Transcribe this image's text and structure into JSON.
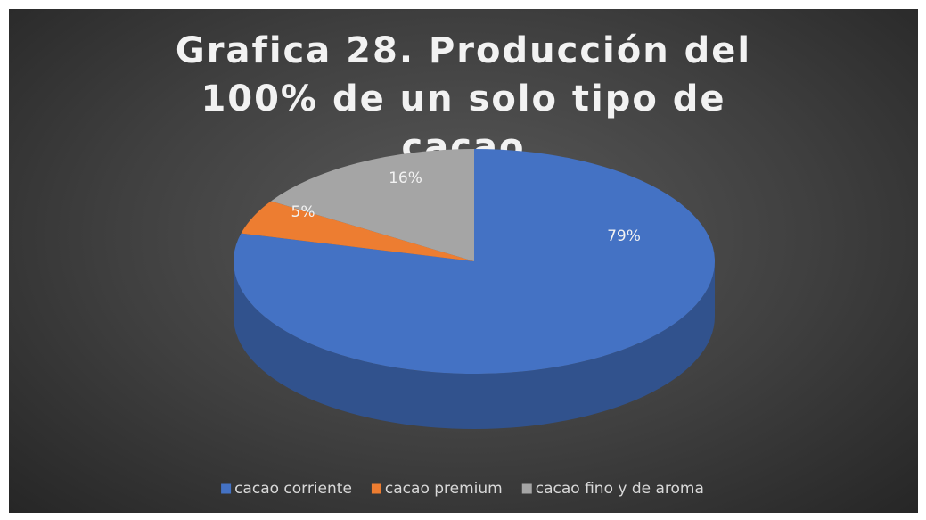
{
  "chart_data": {
    "type": "pie",
    "title": "Grafica 28. Producción del 100% de un solo tipo de cacao",
    "categories": [
      "cacao corriente",
      "cacao premium",
      "cacao fino y de aroma"
    ],
    "values": [
      79,
      5,
      16
    ],
    "value_labels": [
      "79%",
      "5%",
      "16%"
    ],
    "colors": [
      "#4472c4",
      "#ed7d31",
      "#a5a5a5"
    ],
    "legend": "bottom"
  }
}
